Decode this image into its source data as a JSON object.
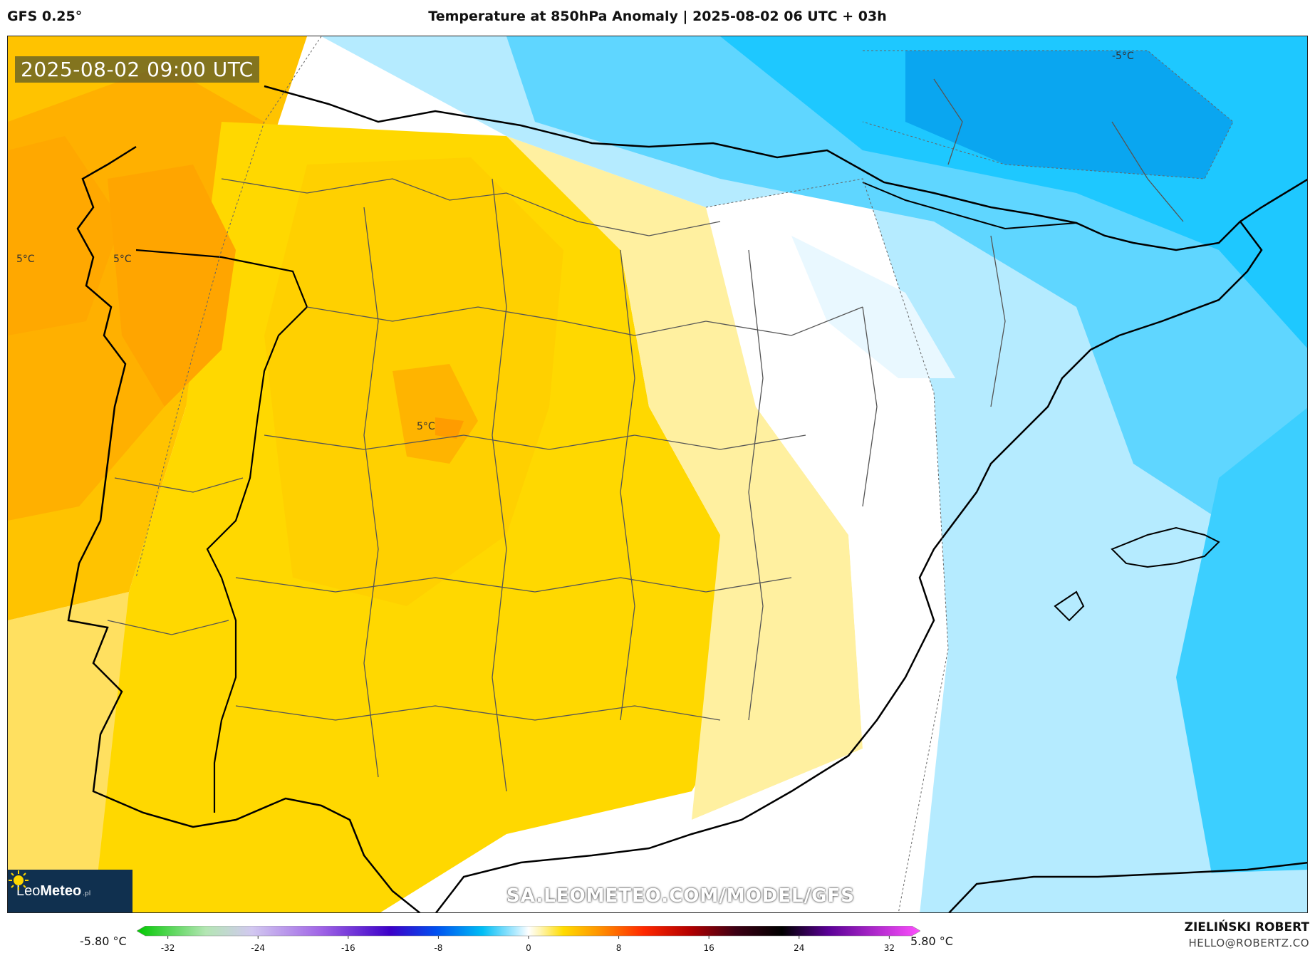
{
  "header": {
    "model": "GFS 0.25°",
    "title": "Temperature at 850hPa Anomaly | 2025-08-02 06 UTC + 03h"
  },
  "map": {
    "timestamp": "2025-08-02 09:00 UTC",
    "region": "Iberian Peninsula",
    "isolines": [
      {
        "label": "5°C"
      },
      {
        "label": "5°C"
      },
      {
        "label": "5°C"
      },
      {
        "label": "-5°C"
      }
    ],
    "watermark": "SA.LEOMETEO.COM/MODEL/GFS",
    "logo": {
      "brand_light": "Leo",
      "brand_bold": "Meteo",
      "tld": ".pl"
    }
  },
  "legend": {
    "min_label": "-5.80 °C",
    "max_label": "5.80 °C",
    "ticks": [
      "-32",
      "-24",
      "-16",
      "-8",
      "0",
      "8",
      "16",
      "24",
      "32"
    ],
    "tick_values": [
      -32,
      -24,
      -16,
      -8,
      0,
      8,
      16,
      24,
      32
    ],
    "range": [
      -34,
      34
    ],
    "stops": [
      {
        "v": -34,
        "c": "#00c800"
      },
      {
        "v": -28,
        "c": "#b4e6b4"
      },
      {
        "v": -24,
        "c": "#d2c8f0"
      },
      {
        "v": -18,
        "c": "#a064e6"
      },
      {
        "v": -12,
        "c": "#3c00c8"
      },
      {
        "v": -8,
        "c": "#0050f0"
      },
      {
        "v": -4,
        "c": "#00bef5"
      },
      {
        "v": -1,
        "c": "#b9ecff"
      },
      {
        "v": 0,
        "c": "#ffffff"
      },
      {
        "v": 1,
        "c": "#fff5b4"
      },
      {
        "v": 3,
        "c": "#ffdc00"
      },
      {
        "v": 6,
        "c": "#ff9600"
      },
      {
        "v": 10,
        "c": "#ff2800"
      },
      {
        "v": 14,
        "c": "#b40000"
      },
      {
        "v": 18,
        "c": "#3c0014"
      },
      {
        "v": 22,
        "c": "#000000"
      },
      {
        "v": 26,
        "c": "#5a0096"
      },
      {
        "v": 34,
        "c": "#ff50ff"
      }
    ]
  },
  "author": {
    "name": "ZIELIŃSKI ROBERT",
    "email": "HELLO@ROBERTZ.CO"
  }
}
